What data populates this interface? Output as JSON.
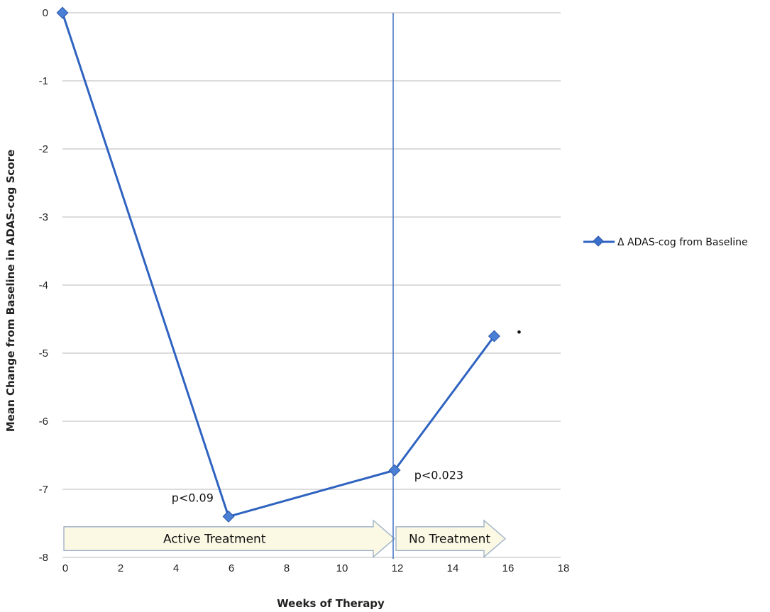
{
  "chart_data": {
    "type": "line",
    "xlabel": "Weeks of Therapy",
    "ylabel": "Mean Change from Baseline in ADAS-cog Score",
    "xlim": [
      0,
      18
    ],
    "ylim": [
      -8,
      0
    ],
    "xticks": [
      "0",
      "2",
      "4",
      "6",
      "8",
      "10",
      "12",
      "14",
      "16",
      "18"
    ],
    "yticks": [
      "0",
      "-1",
      "-2",
      "-3",
      "-4",
      "-5",
      "-6",
      "-7",
      "-8"
    ],
    "grid": "horizontal",
    "legend_position": "right",
    "series": [
      {
        "name": "Δ ADAS-cog from Baseline",
        "color": "#2f63c0",
        "marker": "diamond",
        "x": [
          0,
          6,
          12,
          15.6
        ],
        "y": [
          0,
          -7.4,
          -6.72,
          -4.75
        ]
      }
    ],
    "vertical_line_x": 12,
    "annotations": [
      {
        "text": "p<0.09",
        "x": 4.7,
        "y": -7.18
      },
      {
        "text": "p<0.023",
        "x": 13.6,
        "y": -6.85
      },
      {
        "text": "•",
        "x": 16.5,
        "y": -4.75
      }
    ],
    "phases": [
      {
        "label": "Active Treatment",
        "x_start": 0,
        "x_end": 12
      },
      {
        "label": "No Treatment",
        "x_start": 12,
        "x_end": 16
      }
    ]
  }
}
